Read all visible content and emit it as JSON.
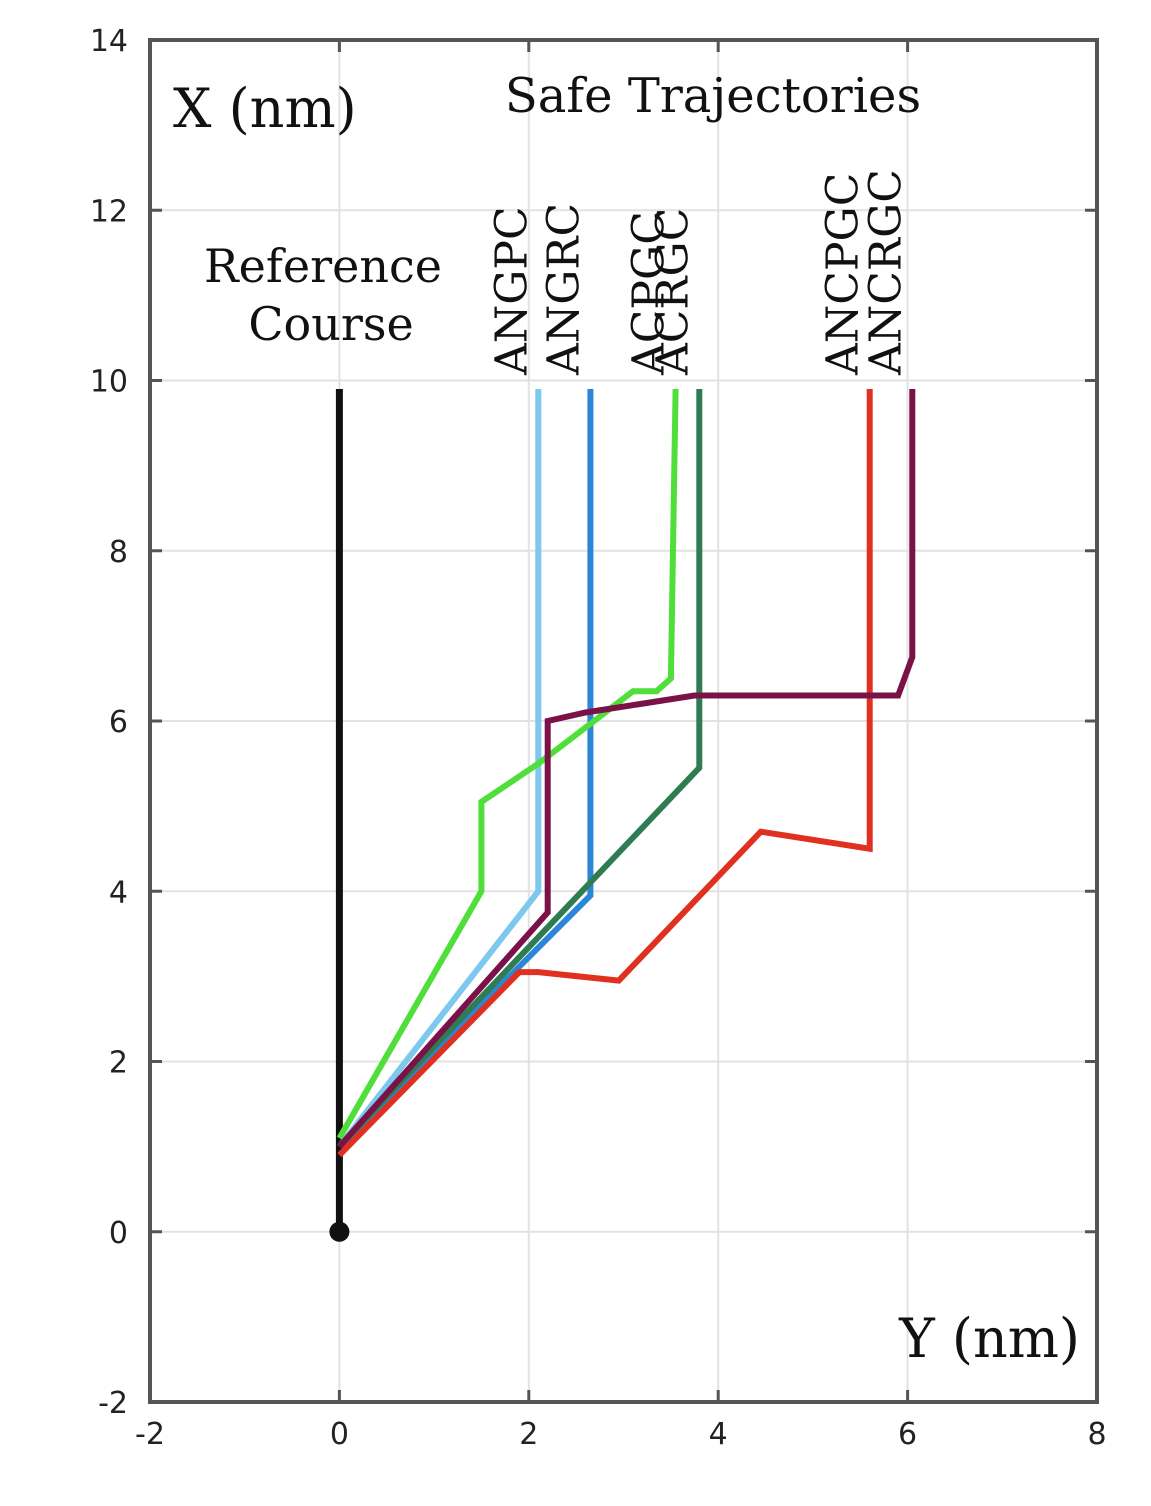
{
  "chart_data": {
    "type": "line",
    "title": "Safe Trajectories",
    "xlabel": "Y (nm)",
    "ylabel": "X (nm)",
    "xlim": [
      -2,
      8
    ],
    "ylim": [
      -2,
      14
    ],
    "x_ticks": [
      "-2",
      "0",
      "2",
      "4",
      "6",
      "8"
    ],
    "y_ticks": [
      "-2",
      "0",
      "2",
      "4",
      "6",
      "8",
      "10",
      "12",
      "14"
    ],
    "grid": true,
    "annotation": [
      "Reference",
      "Course"
    ],
    "series": [
      {
        "name": "Reference Course",
        "color": "#111111",
        "points": [
          [
            0,
            0
          ],
          [
            0,
            9.9
          ]
        ]
      },
      {
        "name": "ANGPC",
        "color": "#7cc8ee",
        "points": [
          [
            0,
            1.0
          ],
          [
            2.1,
            4.0
          ],
          [
            2.1,
            9.9
          ]
        ]
      },
      {
        "name": "ANGRC",
        "color": "#2b86d8",
        "points": [
          [
            0,
            1.0
          ],
          [
            2.65,
            3.95
          ],
          [
            2.65,
            9.9
          ]
        ]
      },
      {
        "name": "ACPGC",
        "color": "#4fde3a",
        "points": [
          [
            0,
            1.1
          ],
          [
            1.5,
            4.0
          ],
          [
            1.5,
            5.05
          ],
          [
            2.1,
            5.5
          ],
          [
            3.1,
            6.35
          ],
          [
            3.35,
            6.35
          ],
          [
            3.5,
            6.5
          ],
          [
            3.55,
            9.9
          ]
        ]
      },
      {
        "name": "ACRGC",
        "color": "#2e7d52",
        "points": [
          [
            0,
            1.0
          ],
          [
            3.8,
            5.45
          ],
          [
            3.8,
            9.9
          ]
        ]
      },
      {
        "name": "ANCPGC",
        "color": "#e03020",
        "points": [
          [
            0,
            0.9
          ],
          [
            1.9,
            3.05
          ],
          [
            2.1,
            3.05
          ],
          [
            2.95,
            2.95
          ],
          [
            4.45,
            4.7
          ],
          [
            5.6,
            4.5
          ],
          [
            5.6,
            9.9
          ]
        ]
      },
      {
        "name": "ANCRGC",
        "color": "#7a1248",
        "points": [
          [
            0,
            1.0
          ],
          [
            2.2,
            3.75
          ],
          [
            2.2,
            6.0
          ],
          [
            2.6,
            6.1
          ],
          [
            3.75,
            6.3
          ],
          [
            5.9,
            6.3
          ],
          [
            6.05,
            6.75
          ],
          [
            6.05,
            9.9
          ]
        ]
      }
    ],
    "start_marker": [
      0,
      0
    ]
  }
}
